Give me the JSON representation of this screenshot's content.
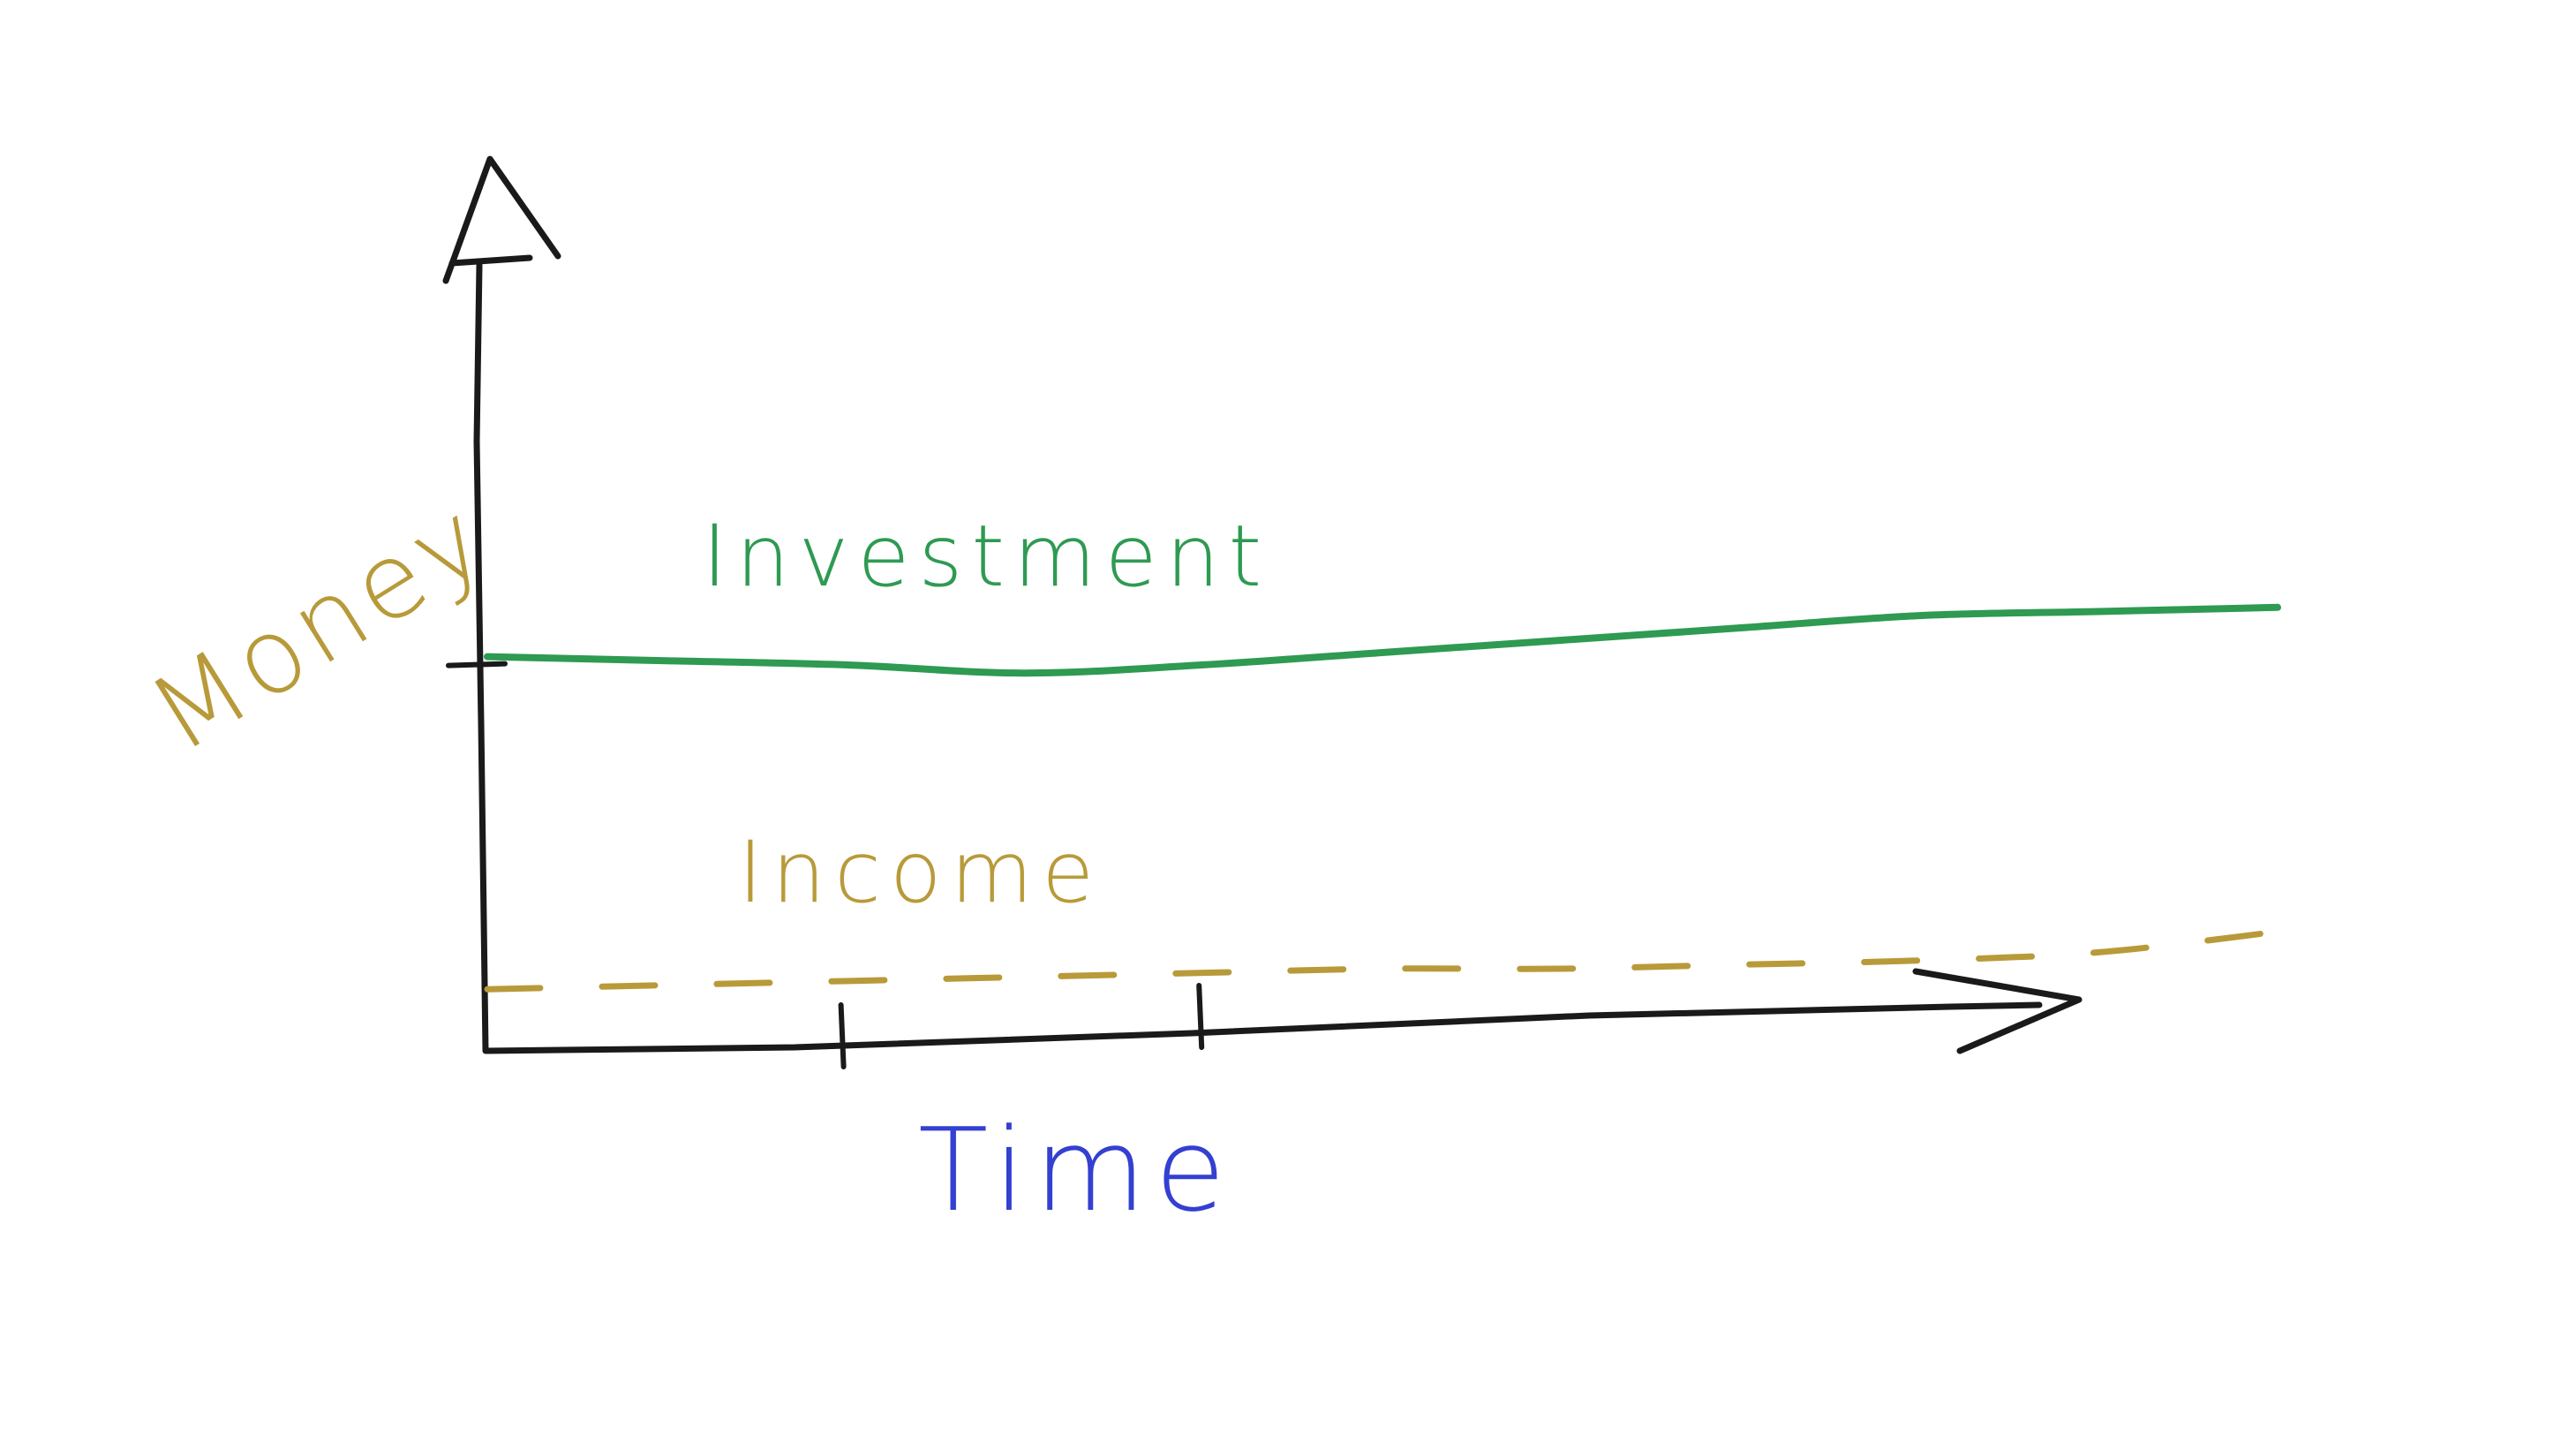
{
  "chart_data": {
    "type": "line",
    "title": "",
    "xlabel": "Time",
    "ylabel": "Money",
    "x_ticks": 2,
    "y_ticks": 1,
    "grid": false,
    "legend": "none",
    "xlim": [
      0,
      10
    ],
    "ylim": [
      0,
      10
    ],
    "series": [
      {
        "name": "Investment",
        "style": "solid",
        "color": "#2e9a52",
        "x": [
          0,
          1,
          2,
          3,
          4,
          5,
          6,
          7,
          8,
          9,
          10
        ],
        "y": [
          4.8,
          4.75,
          4.7,
          4.6,
          4.7,
          4.85,
          5.0,
          5.15,
          5.3,
          5.35,
          5.4
        ]
      },
      {
        "name": "Income",
        "style": "dashed",
        "color": "#b89a3a",
        "x": [
          0,
          1,
          2,
          3,
          4,
          5,
          6,
          7,
          8,
          9,
          10
        ],
        "y": [
          0.75,
          0.8,
          0.85,
          0.9,
          0.95,
          1.0,
          1.0,
          1.05,
          1.1,
          1.2,
          1.45
        ]
      }
    ]
  },
  "colors": {
    "axis": "#1a1a1a",
    "money_label": "#b89a3a",
    "time_label": "#3340d0"
  }
}
